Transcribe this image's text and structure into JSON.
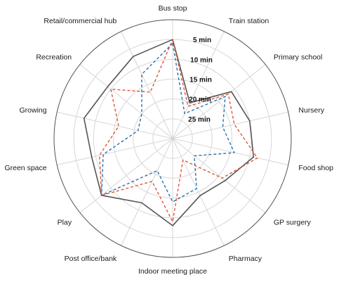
{
  "chart_data": {
    "type": "radar",
    "categories": [
      "Bus stop",
      "Train station",
      "Primary school",
      "Nursery",
      "Food shop",
      "GP surgery",
      "Pharmacy",
      "Indoor meeting place",
      "Post office/bank",
      "Play",
      "Green space",
      "Growing",
      "Recreation",
      "Retail/commercial hub"
    ],
    "tick_labels": [
      "5 min",
      "10 min",
      "15 min",
      "20 min",
      "25 min"
    ],
    "axis": {
      "min_minutes": 0,
      "max_minutes": 30,
      "direction": "inverted"
    },
    "grid": true,
    "series": [
      {
        "color": "#555555",
        "dash": "solid",
        "values": [
          5,
          20,
          11,
          10,
          9,
          13,
          14,
          8,
          12,
          7,
          9,
          7,
          9,
          7
        ]
      },
      {
        "color": "#e2553a",
        "dash": "dashed",
        "values": [
          5,
          21,
          12,
          14,
          8,
          14,
          24,
          9,
          18,
          7,
          11,
          16,
          10,
          17
        ]
      },
      {
        "color": "#2e6fa7",
        "dash": "dashed",
        "values": [
          6,
          23,
          13,
          17,
          14,
          23,
          16,
          14,
          21,
          7,
          12,
          21,
          20,
          12
        ]
      }
    ]
  }
}
